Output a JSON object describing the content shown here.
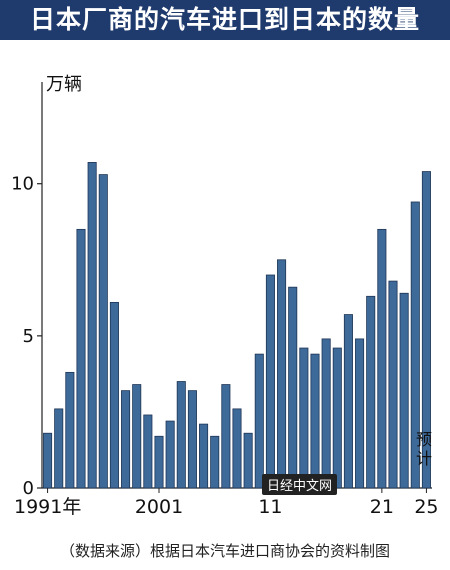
{
  "title": "日本厂商的汽车进口到日本的数量",
  "unit": "万辆",
  "source": "（数据来源）根据日本汽车进口商协会的资料制图",
  "watermark": "日经中文网",
  "forecast_label": "预计",
  "colors": {
    "title_bg": "#1f3a6d",
    "bar": "#3e6a9a",
    "bar_stroke": "#1e3555"
  },
  "chart_data": {
    "type": "bar",
    "title": "日本厂商的汽车进口到日本的数量",
    "ylabel": "万辆",
    "ylim": [
      0,
      14
    ],
    "yticks": [
      0,
      5,
      10
    ],
    "grid": false,
    "x_tick_labels": [
      {
        "year": 1991,
        "label": "1991年"
      },
      {
        "year": 2001,
        "label": "2001"
      },
      {
        "year": 2011,
        "label": "11"
      },
      {
        "year": 2021,
        "label": "21"
      },
      {
        "year": 2025,
        "label": "25"
      }
    ],
    "categories": [
      1991,
      1992,
      1993,
      1994,
      1995,
      1996,
      1997,
      1998,
      1999,
      2000,
      2001,
      2002,
      2003,
      2004,
      2005,
      2006,
      2007,
      2008,
      2009,
      2010,
      2011,
      2012,
      2013,
      2014,
      2015,
      2016,
      2017,
      2018,
      2019,
      2020,
      2021,
      2022,
      2023,
      2024,
      2025
    ],
    "values": [
      1.8,
      2.6,
      3.8,
      8.5,
      10.7,
      10.3,
      6.1,
      3.2,
      3.4,
      2.4,
      1.7,
      2.2,
      3.5,
      3.2,
      2.1,
      1.7,
      3.4,
      2.6,
      1.8,
      4.4,
      7.0,
      7.5,
      6.6,
      4.6,
      4.4,
      4.9,
      4.6,
      5.7,
      4.9,
      6.3,
      8.5,
      6.8,
      6.4,
      9.4,
      10.4
    ],
    "forecast_year": 2025
  }
}
